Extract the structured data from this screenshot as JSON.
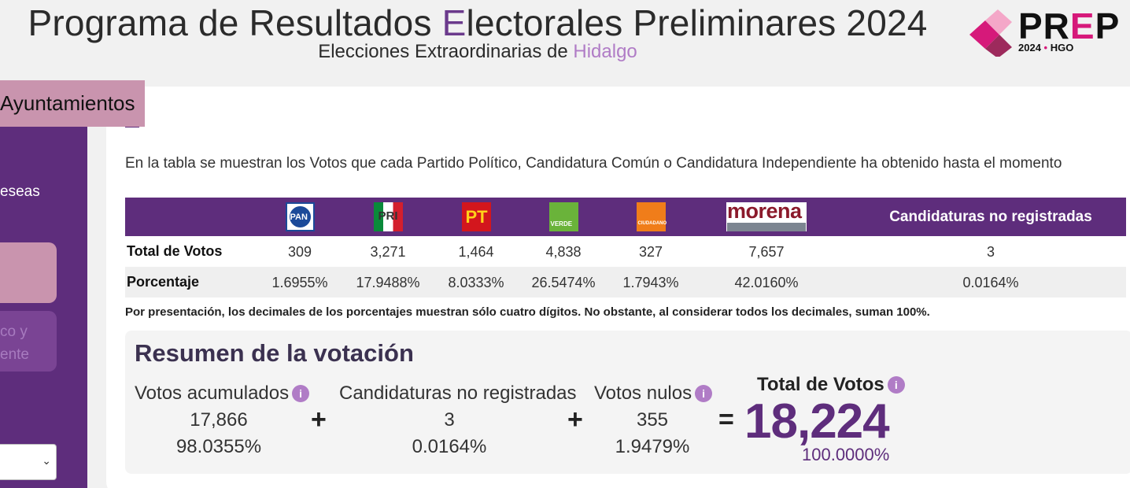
{
  "header": {
    "title_pre": "Programa de Resultados ",
    "title_accent": "E",
    "title_post": "lectorales Preliminares 2024",
    "subtitle_pre": "Elecciones Extraordinarias de ",
    "subtitle_state": "Hidalgo"
  },
  "logo": {
    "word_1": "PR",
    "word_e": "E",
    "word_2": "P",
    "sub_year": "2024",
    "sub_dot": "•",
    "sub_state": "HGO"
  },
  "tab": {
    "label": "Ayuntamientos"
  },
  "sidebar": {
    "text_fragment": "eseas",
    "option2_line1": "co y",
    "option2_line2": "ente",
    "select_chevron": "chevron-down-icon"
  },
  "intro": "En la tabla se muestran los Votos que cada Partido Político, Candidatura Común o Candidatura Independiente ha obtenido hasta el momento",
  "table": {
    "parties": [
      {
        "logo": "pan-logo",
        "text": "PAN",
        "votes": "309",
        "pct": "1.6955%"
      },
      {
        "logo": "pri-logo",
        "text": "PRI",
        "votes": "3,271",
        "pct": "17.9488%"
      },
      {
        "logo": "pt-logo",
        "text": "PT",
        "votes": "1,464",
        "pct": "8.0333%"
      },
      {
        "logo": "verde-logo",
        "text": "VERDE",
        "votes": "4,838",
        "pct": "26.5474%"
      },
      {
        "logo": "movimiento-ciudadano-logo",
        "text": "CIUDADANO",
        "votes": "327",
        "pct": "1.7943%"
      },
      {
        "logo": "morena-logo",
        "text": "morena",
        "votes": "7,657",
        "pct": "42.0160%"
      }
    ],
    "non_registered": {
      "header": "Candidaturas no registradas",
      "votes": "3",
      "pct": "0.0164%"
    },
    "row_total_label": "Total de Votos",
    "row_pct_label": "Porcentaje"
  },
  "footnote": "Por presentación, los decimales de los porcentajes muestran sólo cuatro dígitos. No obstante, al considerar todos los decimales, suman 100%.",
  "summary": {
    "title": "Resumen de la votación",
    "acumulados": {
      "label": "Votos acumulados",
      "value": "17,866",
      "pct": "98.0355%"
    },
    "no_registradas": {
      "label": "Candidaturas no registradas",
      "value": "3",
      "pct": "0.0164%"
    },
    "nulos": {
      "label": "Votos nulos",
      "value": "355",
      "pct": "1.9479%"
    },
    "total": {
      "label": "Total de Votos",
      "value": "18,224",
      "pct": "100.0000%"
    },
    "op_plus": "+",
    "op_equals": "=",
    "info_glyph": "i"
  }
}
